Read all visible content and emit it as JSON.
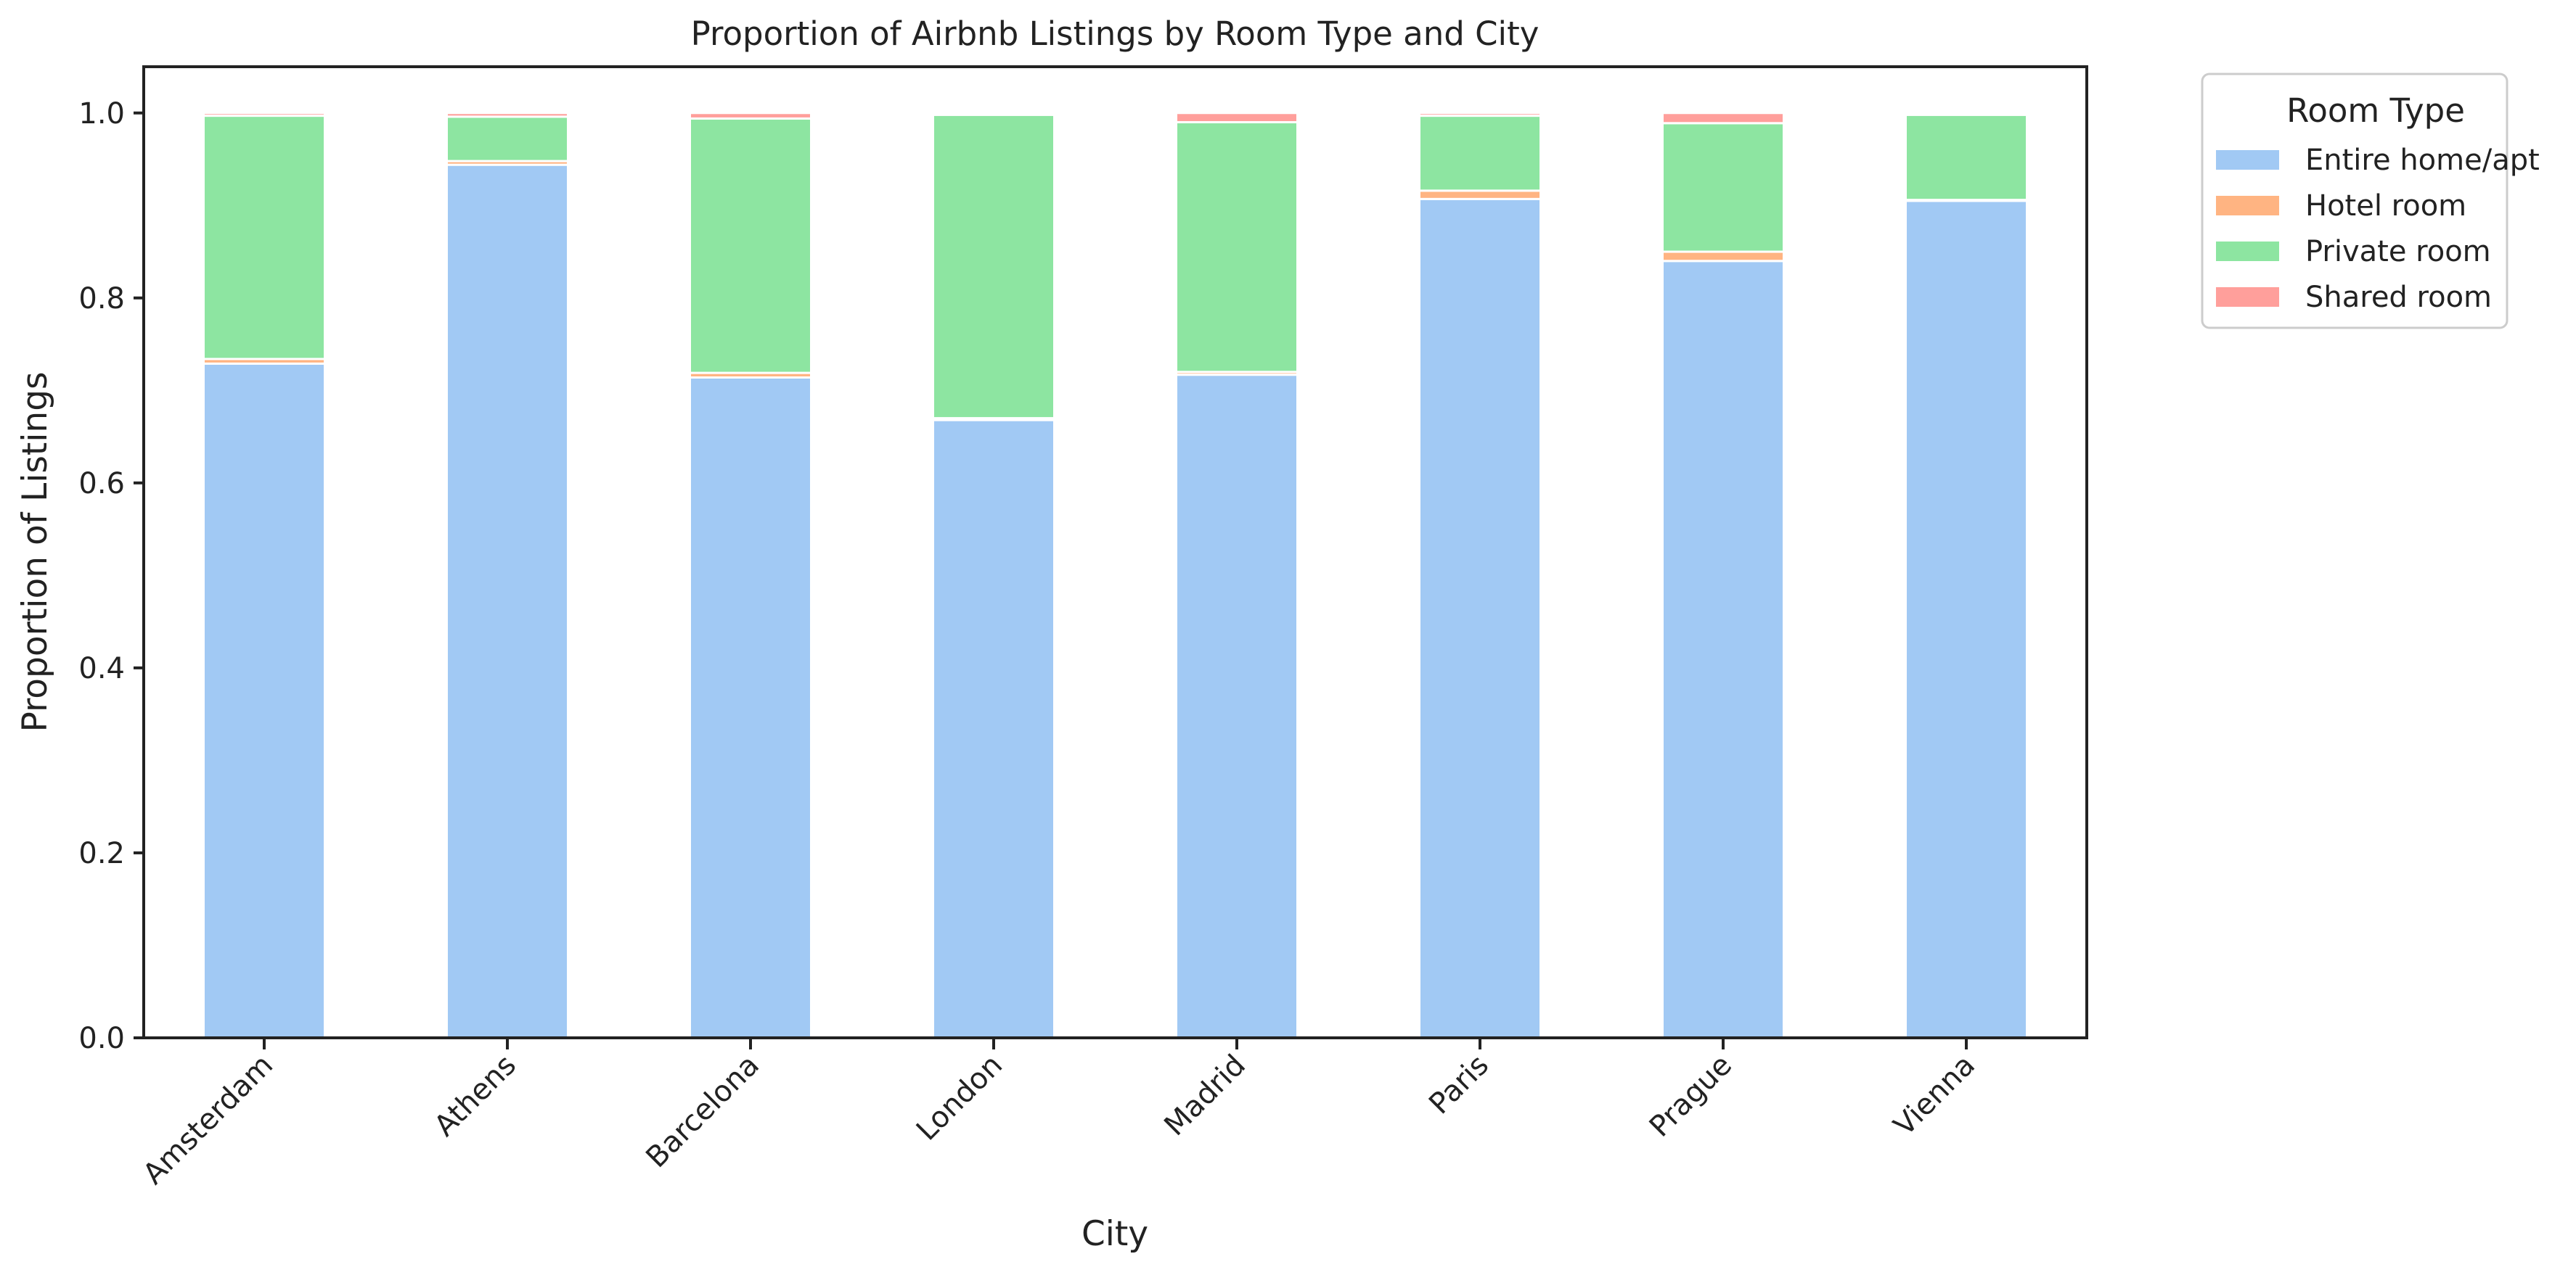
{
  "chart_data": {
    "type": "bar",
    "stacked": true,
    "title": "Proportion of Airbnb Listings by Room Type and City",
    "xlabel": "City",
    "ylabel": "Proportion of Listings",
    "ylim": [
      0,
      1.05
    ],
    "yticks": [
      "0.0",
      "0.2",
      "0.4",
      "0.6",
      "0.8",
      "1.0"
    ],
    "grid": false,
    "legend_position": "outside-top-right",
    "legend_title": "Room Type",
    "categories": [
      "Amsterdam",
      "Athens",
      "Barcelona",
      "London",
      "Madrid",
      "Paris",
      "Prague",
      "Vienna"
    ],
    "series": [
      {
        "name": "Entire home/apt",
        "color": "#a1c9f4",
        "values": [
          0.729,
          0.944,
          0.714,
          0.668,
          0.717,
          0.907,
          0.84,
          0.905
        ]
      },
      {
        "name": "Hotel room",
        "color": "#ffb482",
        "values": [
          0.005,
          0.004,
          0.005,
          0.002,
          0.003,
          0.009,
          0.01,
          0.001
        ]
      },
      {
        "name": "Private room",
        "color": "#8de5a1",
        "values": [
          0.263,
          0.048,
          0.275,
          0.328,
          0.27,
          0.081,
          0.139,
          0.092
        ]
      },
      {
        "name": "Shared room",
        "color": "#ff9f9b",
        "values": [
          0.003,
          0.004,
          0.006,
          0.002,
          0.01,
          0.003,
          0.011,
          0.002
        ]
      }
    ]
  }
}
